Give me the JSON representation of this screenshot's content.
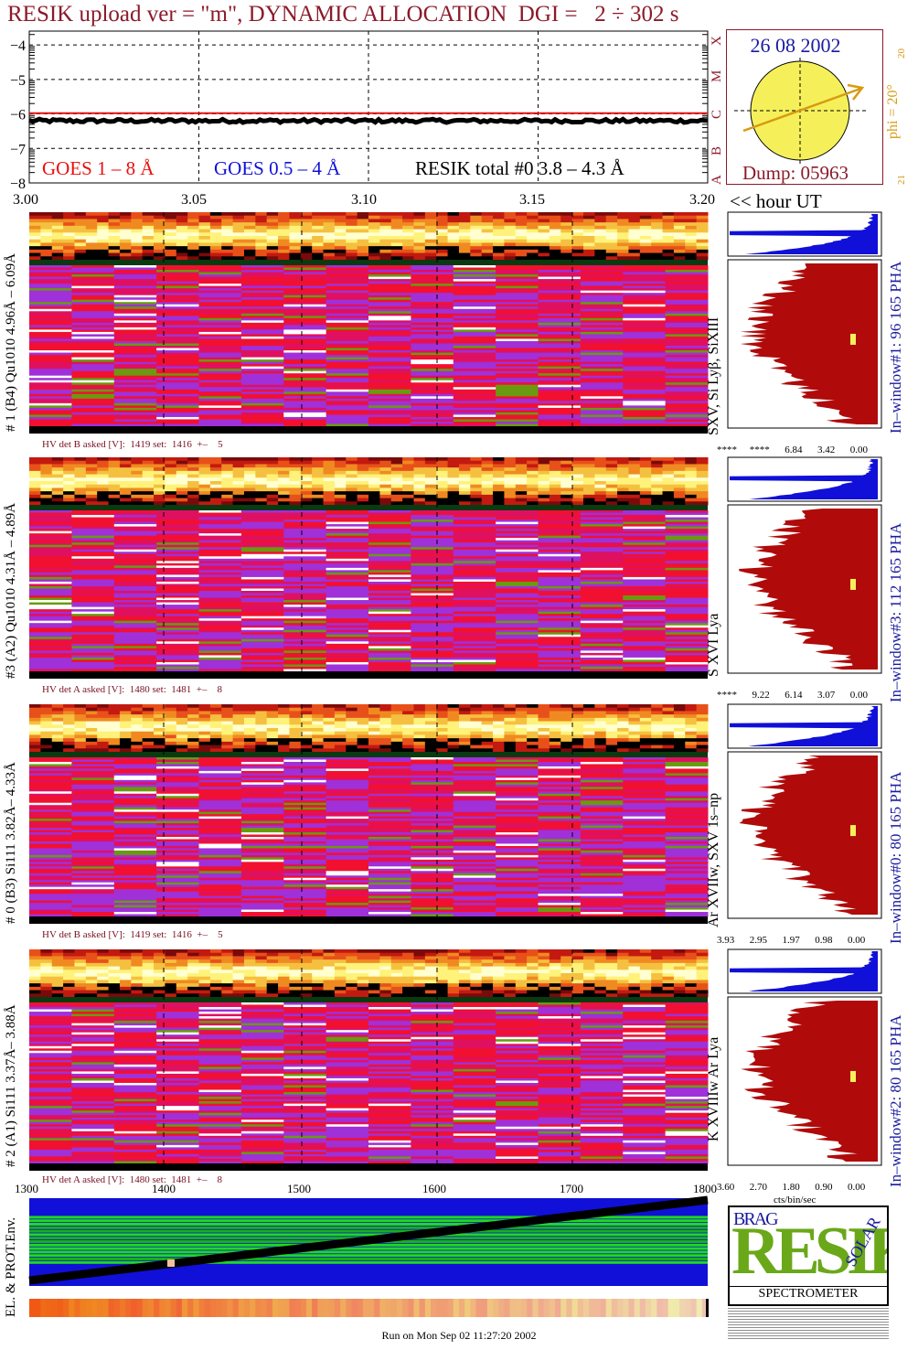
{
  "header": {
    "title": "RESIK upload ver = \"m\", DYNAMIC ALLOCATION  DGI =   2 ÷ 302 s"
  },
  "goes_panel": {
    "legend_goes18": "GOES 1 – 8 Å",
    "legend_goes054": "GOES 0.5 – 4 Å",
    "legend_resik": "RESIK total #0  3.8 – 4.3 Å",
    "class_letters": [
      "X",
      "M",
      "C",
      "B",
      "A"
    ],
    "colors": {
      "goes18": "#e81010",
      "goes054": "#1010d8",
      "resik": "#000000"
    }
  },
  "sun_panel": {
    "date": "26 08 2002",
    "phi_label": "phi = 20°",
    "phi_tick_top": "20",
    "phi_tick_bottom": "21",
    "dump": "Dump: 05963",
    "sun_color": "#f5f05a",
    "arrow_color": "#d89a10"
  },
  "time_axis": {
    "ticks": [
      "3.00",
      "3.05",
      "3.10",
      "3.15",
      "3.20"
    ],
    "unit_label": "<< hour UT"
  },
  "detectors": [
    {
      "left_label": "# 1 (B4) Qu1010 4.96Å – 6.09Å",
      "line_label": "SXV, Si Lyβ, SiXIII",
      "window_label": "In–window#1:   96 165  PHA",
      "hv_label": "HV det B asked [V]:  1419 set:  1416  +–    5",
      "pha_ticks": "****     ****      6.84      3.42      0.00"
    },
    {
      "left_label": "#3 (A2) Qu1010  4.31Å – 4.89Å",
      "line_label": "S XVI Lya",
      "window_label": "In–window#3:  112 165  PHA",
      "hv_label": "HV det A asked [V]:  1480 set:  1481  +–    8",
      "pha_ticks": "****      9.22      6.14      3.07      0.00"
    },
    {
      "left_label": "# 0 (B3) Si111  3.82Å– 4.33Å",
      "line_label": "Ar XVIIw,  SXV 1s–np",
      "window_label": "In–window#0:   80 165  PHA",
      "hv_label": "HV det B asked [V]:  1419 set:  1416  +–    5",
      "pha_ticks": "3.93      2.95      1.97      0.98      0.00"
    },
    {
      "left_label": "# 2 (A1) Si111  3.37Å– 3.88Å",
      "line_label": "K XVIIIw  Ar Lya",
      "window_label": "In–window#2:   80 165  PHA",
      "hv_label": "HV det A asked [V]:  1480 set:  1481  +–    8",
      "pha_ticks": "3.60      2.70      1.80      0.90      0.00"
    }
  ],
  "pha_unit": "cts/bin/sec",
  "env_panel": {
    "left_label": "EL. & PROT.Env.",
    "x_ticks": [
      "1300",
      "1400",
      "1500",
      "1600",
      "1700",
      "1800"
    ]
  },
  "logo": {
    "letters_big": "RESIK",
    "small_left": "BRAG",
    "small_right": "SOLAR",
    "bottom": "SPECTROMETER"
  },
  "footer": {
    "run_info": "Run on Mon Sep 02 11:27:20 2002"
  },
  "chart_data": {
    "type": "line",
    "title": "RESIK upload ver = \"m\", DYNAMIC ALLOCATION  DGI =   2 ÷ 302 s",
    "xlabel": "<< hour UT",
    "ylabel": "",
    "x_ticks": [
      3.0,
      3.05,
      3.1,
      3.15,
      3.2
    ],
    "xlim": [
      3.0,
      3.2
    ],
    "y_ticks": [
      -4,
      -5,
      -6,
      -7,
      -8
    ],
    "ylim": [
      -8,
      -3.6
    ],
    "grid": true,
    "series": [
      {
        "name": "GOES 1 – 8 Å",
        "color": "#e81010",
        "level": -5.98
      },
      {
        "name": "RESIK total #0  3.8 – 4.3 Å",
        "color": "#000000",
        "level": -6.2,
        "noise": 0.05
      }
    ]
  }
}
